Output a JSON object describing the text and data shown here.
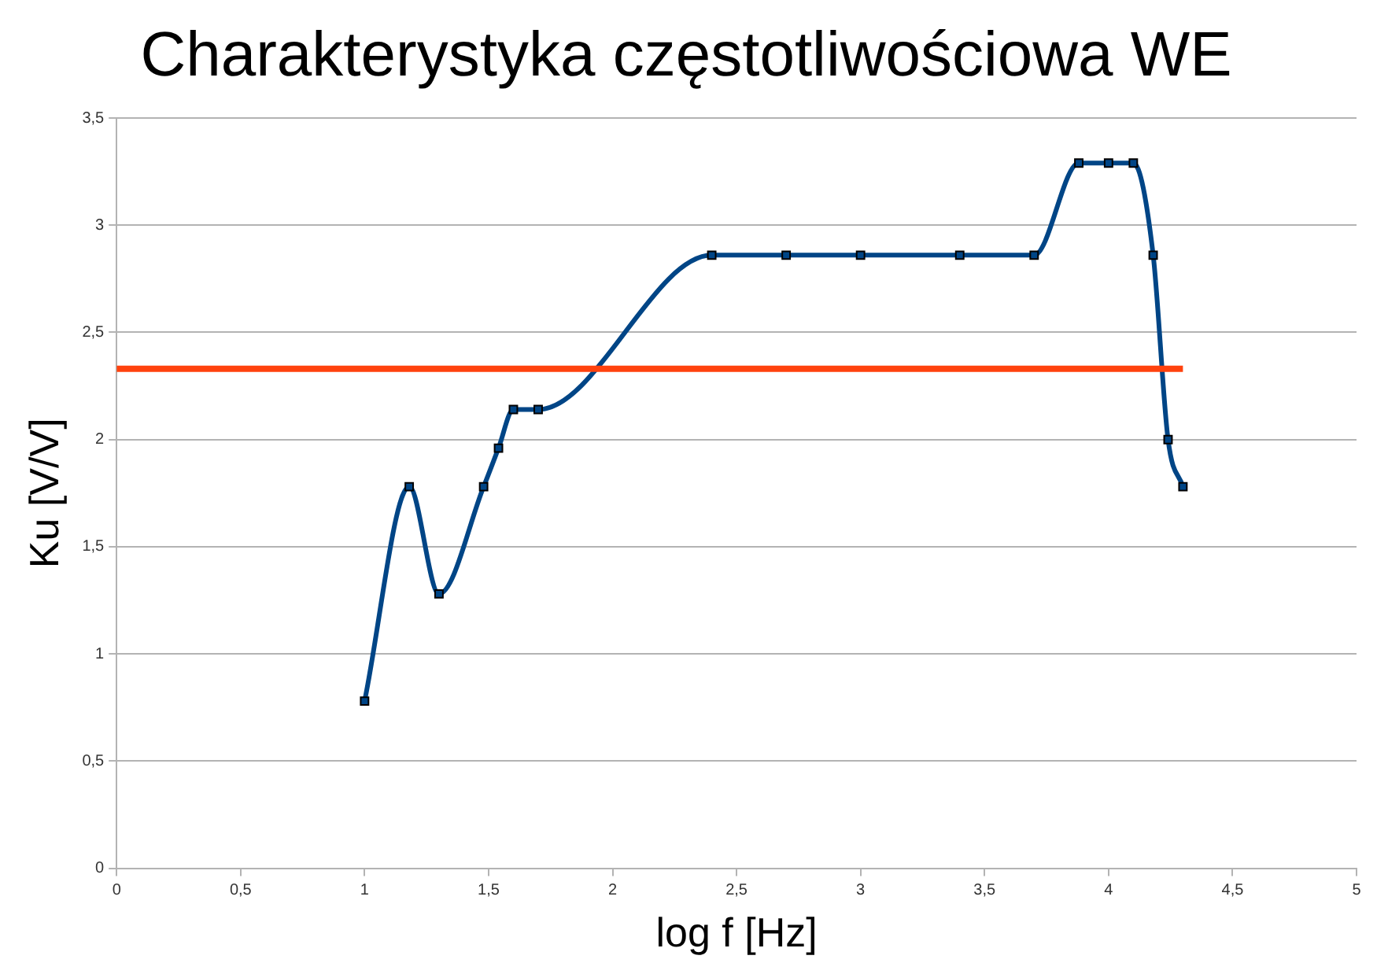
{
  "chart_data": {
    "type": "line",
    "title": "Charakterystyka częstotliwościowa WE",
    "xlabel": "log f [Hz]",
    "ylabel": "Ku [V/V]",
    "xlim": [
      0,
      5
    ],
    "xticks": [
      0,
      {
        "value": 0.5,
        "label": "0,5"
      },
      1,
      {
        "value": 1.5,
        "label": "1,5"
      },
      2,
      {
        "value": 2.5,
        "label": "2,5"
      },
      3,
      {
        "value": 3.5,
        "label": "3,5"
      },
      4,
      {
        "value": 4.5,
        "label": "4,5"
      },
      5
    ],
    "ylim": [
      0,
      3.5
    ],
    "yticks": [
      0,
      {
        "value": 0.5,
        "label": "0,5"
      },
      1,
      {
        "value": 1.5,
        "label": "1,5"
      },
      2,
      {
        "value": 2.5,
        "label": "2,5"
      },
      3,
      {
        "value": 3.5,
        "label": "3,5"
      }
    ],
    "grid": "y",
    "legend": false,
    "marker": "square",
    "line_style": "solid",
    "series": [
      {
        "color": "#004586",
        "x": [
          1,
          1.18,
          1.3,
          1.48,
          1.54,
          1.6,
          1.7,
          2.4,
          2.7,
          3,
          3.4,
          3.7,
          3.88,
          4,
          4.1,
          4.18,
          4.24,
          4.3
        ],
        "values": [
          0.78,
          1.78,
          1.28,
          1.78,
          1.96,
          2.14,
          2.14,
          2.86,
          2.86,
          2.86,
          2.86,
          2.86,
          3.29,
          3.29,
          3.29,
          2.86,
          2,
          1.78
        ]
      },
      {
        "color": "#ff420e",
        "marker": "none",
        "x": [
          0,
          4.3
        ],
        "values": [
          2.33,
          2.33
        ]
      }
    ]
  }
}
